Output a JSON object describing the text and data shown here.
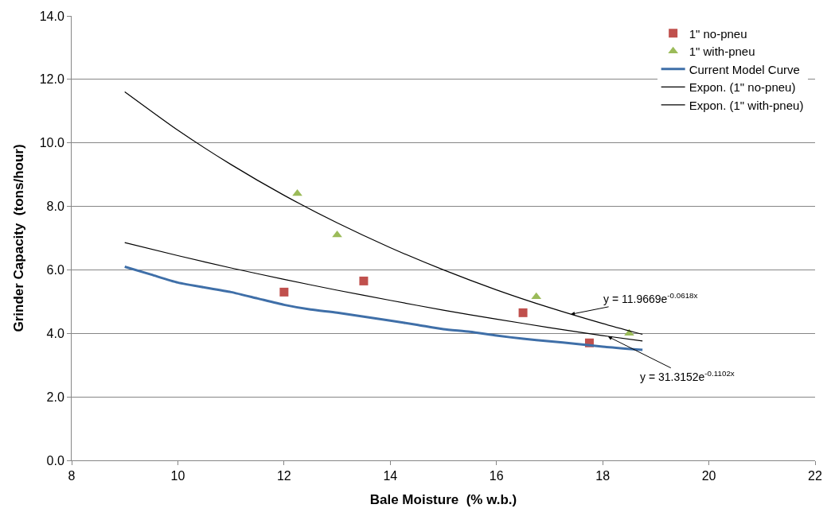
{
  "chart_data": {
    "type": "scatter",
    "xlabel": "Bale Moisture  (% w.b.)",
    "ylabel": "Grinder Capacity  (tons/hour)",
    "xlim": [
      8,
      22
    ],
    "xticks": [
      8,
      10,
      12,
      14,
      16,
      18,
      20,
      22
    ],
    "ylim": [
      0,
      14
    ],
    "yticks": [
      {
        "value": 0,
        "label": "0.0"
      },
      {
        "value": 2,
        "label": "2.0"
      },
      {
        "value": 4,
        "label": "4.0"
      },
      {
        "value": 6,
        "label": "6.0"
      },
      {
        "value": 8,
        "label": "8.0"
      },
      {
        "value": 10,
        "label": "10.0"
      },
      {
        "value": 12,
        "label": "12.0"
      },
      {
        "value": 14,
        "label": "14.0"
      }
    ],
    "grid": "y",
    "legend": "top right",
    "series": [
      {
        "name": "1\" no-pneu",
        "marker": "square",
        "color": "#c0504d",
        "x": [
          12,
          13.5,
          16.5,
          17.75
        ],
        "values": [
          5.3,
          5.65,
          4.65,
          3.7
        ]
      },
      {
        "name": "1\" with-pneu",
        "marker": "triangle",
        "color": "#9bbb59",
        "x": [
          12.25,
          13,
          16.75,
          18.5
        ],
        "values": [
          8.4,
          7.1,
          5.15,
          4.0
        ]
      },
      {
        "name": "Current Model Curve",
        "type": "line",
        "marker": "none",
        "color": "#3f6fa8",
        "x": [
          9,
          9.5,
          10,
          11,
          11.5,
          12,
          12.5,
          13,
          14,
          14.5,
          15,
          15.5,
          16,
          16.5,
          17,
          17.5,
          18,
          18.75
        ],
        "values": [
          6.1,
          5.85,
          5.6,
          5.3,
          5.1,
          4.9,
          4.75,
          4.65,
          4.4,
          4.27,
          4.13,
          4.05,
          3.93,
          3.83,
          3.75,
          3.67,
          3.58,
          3.48
        ]
      },
      {
        "name": "Expon. (1\" no-pneu)",
        "type": "line",
        "marker": "none",
        "color": "#000000",
        "x": [
          9,
          10,
          11,
          12,
          13,
          14,
          15,
          16,
          17,
          18,
          18.75
        ],
        "values": [
          6.86,
          6.45,
          6.06,
          5.7,
          5.36,
          5.04,
          4.73,
          4.45,
          4.18,
          3.93,
          3.76
        ]
      },
      {
        "name": "Expon. (1\" with-pneu)",
        "type": "line",
        "marker": "none",
        "color": "#000000",
        "x": [
          9,
          10,
          11,
          12,
          13,
          14,
          15,
          16,
          17,
          18,
          18.75
        ],
        "values": [
          11.61,
          10.4,
          9.32,
          8.35,
          7.48,
          6.7,
          6.0,
          5.37,
          4.81,
          4.31,
          3.97
        ]
      }
    ],
    "annotations": [
      {
        "text": "y = 11.9669e$^{-0.0618x}$",
        "x": 17.4,
        "y": 4.6
      },
      {
        "text": "y = 31.3152e$^{-0.1102x}$",
        "x": 18.1,
        "y": 3.9
      }
    ]
  }
}
